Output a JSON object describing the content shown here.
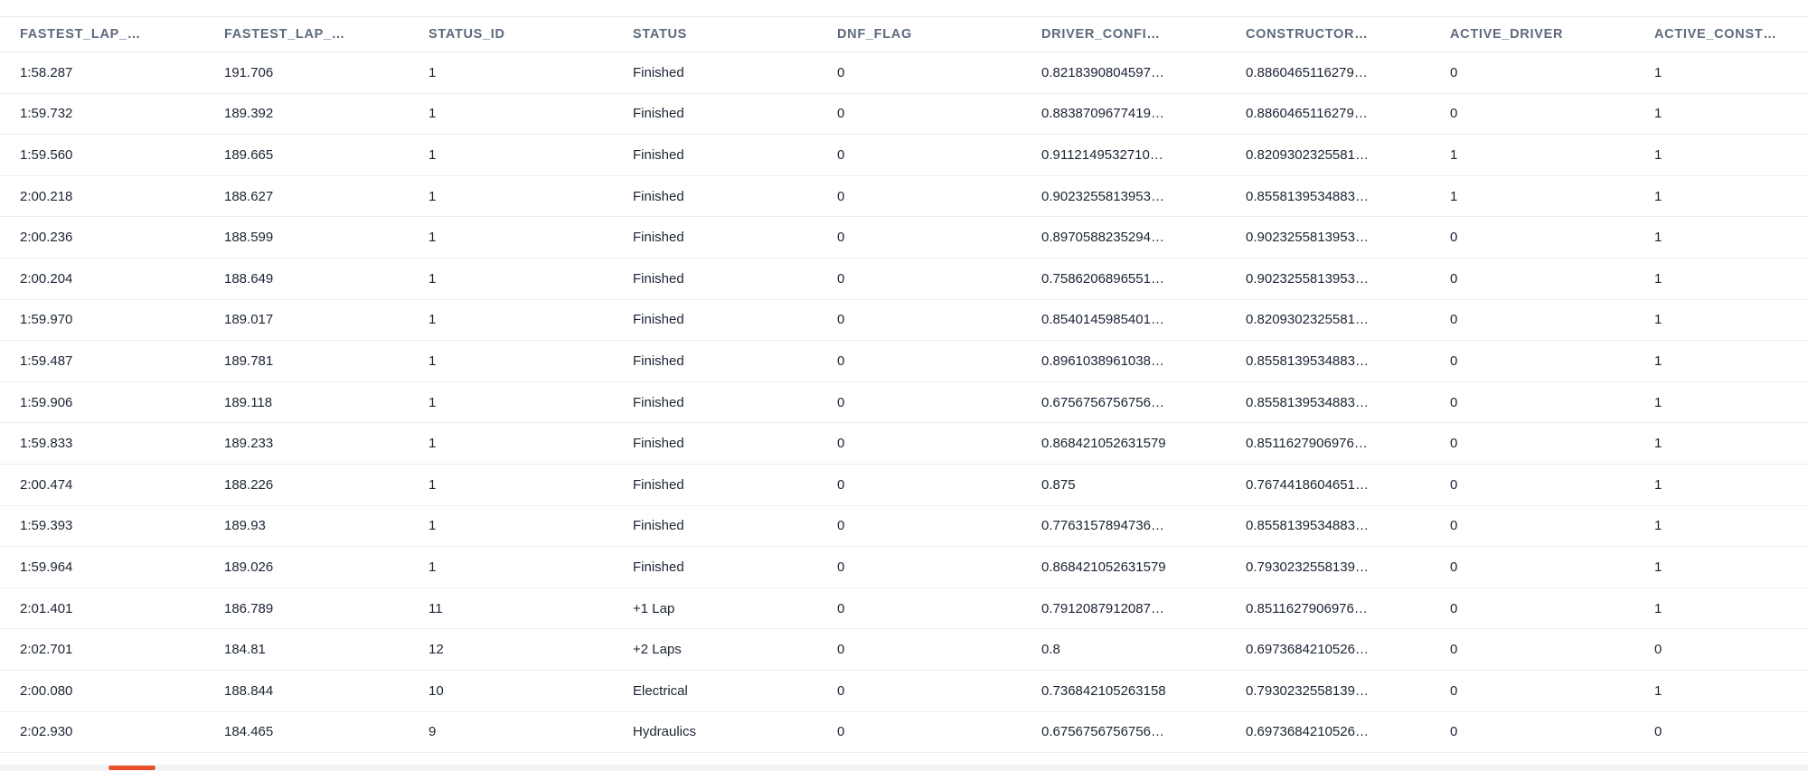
{
  "colors": {
    "header_text": "#5e6a7e",
    "cell_text": "#1b2433",
    "row_border": "#ebedef",
    "scrollbar_thumb": "#ea4f2c"
  },
  "table": {
    "columns": [
      "FASTEST_LAP_…",
      "FASTEST_LAP_…",
      "STATUS_ID",
      "STATUS",
      "DNF_FLAG",
      "DRIVER_CONFI…",
      "CONSTRUCTOR…",
      "ACTIVE_DRIVER",
      "ACTIVE_CONST…"
    ],
    "rows": [
      [
        "1:58.287",
        "191.706",
        "1",
        "Finished",
        "0",
        "0.8218390804597…",
        "0.8860465116279…",
        "0",
        "1"
      ],
      [
        "1:59.732",
        "189.392",
        "1",
        "Finished",
        "0",
        "0.8838709677419…",
        "0.8860465116279…",
        "0",
        "1"
      ],
      [
        "1:59.560",
        "189.665",
        "1",
        "Finished",
        "0",
        "0.9112149532710…",
        "0.8209302325581…",
        "1",
        "1"
      ],
      [
        "2:00.218",
        "188.627",
        "1",
        "Finished",
        "0",
        "0.9023255813953…",
        "0.8558139534883…",
        "1",
        "1"
      ],
      [
        "2:00.236",
        "188.599",
        "1",
        "Finished",
        "0",
        "0.8970588235294…",
        "0.9023255813953…",
        "0",
        "1"
      ],
      [
        "2:00.204",
        "188.649",
        "1",
        "Finished",
        "0",
        "0.7586206896551…",
        "0.9023255813953…",
        "0",
        "1"
      ],
      [
        "1:59.970",
        "189.017",
        "1",
        "Finished",
        "0",
        "0.8540145985401…",
        "0.8209302325581…",
        "0",
        "1"
      ],
      [
        "1:59.487",
        "189.781",
        "1",
        "Finished",
        "0",
        "0.8961038961038…",
        "0.8558139534883…",
        "0",
        "1"
      ],
      [
        "1:59.906",
        "189.118",
        "1",
        "Finished",
        "0",
        "0.6756756756756…",
        "0.8558139534883…",
        "0",
        "1"
      ],
      [
        "1:59.833",
        "189.233",
        "1",
        "Finished",
        "0",
        "0.868421052631579",
        "0.8511627906976…",
        "0",
        "1"
      ],
      [
        "2:00.474",
        "188.226",
        "1",
        "Finished",
        "0",
        "0.875",
        "0.7674418604651…",
        "0",
        "1"
      ],
      [
        "1:59.393",
        "189.93",
        "1",
        "Finished",
        "0",
        "0.7763157894736…",
        "0.8558139534883…",
        "0",
        "1"
      ],
      [
        "1:59.964",
        "189.026",
        "1",
        "Finished",
        "0",
        "0.868421052631579",
        "0.7930232558139…",
        "0",
        "1"
      ],
      [
        "2:01.401",
        "186.789",
        "11",
        "+1 Lap",
        "0",
        "0.7912087912087…",
        "0.8511627906976…",
        "0",
        "1"
      ],
      [
        "2:02.701",
        "184.81",
        "12",
        "+2 Laps",
        "0",
        "0.8",
        "0.6973684210526…",
        "0",
        "0"
      ],
      [
        "2:00.080",
        "188.844",
        "10",
        "Electrical",
        "0",
        "0.736842105263158",
        "0.7930232558139…",
        "0",
        "1"
      ],
      [
        "2:02.930",
        "184.465",
        "9",
        "Hydraulics",
        "0",
        "0.6756756756756…",
        "0.6973684210526…",
        "0",
        "0"
      ]
    ]
  }
}
